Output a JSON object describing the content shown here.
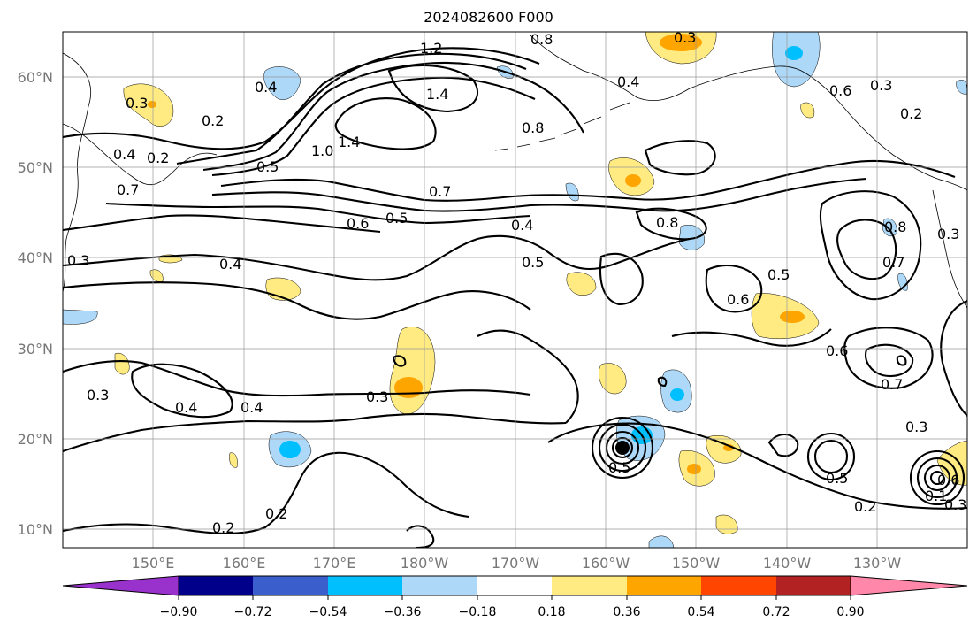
{
  "title": "2024082600 F000",
  "map": {
    "lat_labels": [
      "60°N",
      "50°N",
      "40°N",
      "30°N",
      "20°N",
      "10°N"
    ],
    "lon_labels": [
      "150°E",
      "160°E",
      "170°E",
      "180°W",
      "170°W",
      "160°W",
      "150°W",
      "140°W",
      "130°W"
    ],
    "grid": true,
    "contour_labels": [
      "1.2",
      "1.4",
      "1.4",
      "1.0",
      "0.8",
      "0.8",
      "0.4",
      "0.3",
      "0.3",
      "0.2",
      "0.2",
      "0.2",
      "0.4",
      "0.7",
      "0.5",
      "0.5",
      "0.6",
      "0.4",
      "0.5",
      "0.7",
      "0.8",
      "0.6",
      "0.5",
      "0.4",
      "0.4",
      "0.4",
      "0.3",
      "0.3",
      "0.8",
      "0.7",
      "0.6",
      "0.6",
      "0.7",
      "0.3",
      "0.3",
      "0.5",
      "0.5",
      "0.2",
      "0.2",
      "0.2",
      "0.6",
      "0.4",
      "0.3",
      "0.1",
      "0.3",
      "0.3"
    ]
  },
  "colorbar": {
    "tick_labels": [
      "−0.90",
      "−0.72",
      "−0.54",
      "−0.36",
      "−0.18",
      "0.18",
      "0.36",
      "0.54",
      "0.72",
      "0.90"
    ],
    "colors": [
      "#9932cc",
      "#00008b",
      "#3a5fcd",
      "#00bfff",
      "#add8f8",
      "#ffffff",
      "#ffeb82",
      "#ffa500",
      "#ff4500",
      "#b22222",
      "#ff88aa"
    ]
  },
  "colors": {
    "contour": "#000000",
    "coast": "#000000",
    "grid": "#999999",
    "axis_label": "#777777"
  }
}
